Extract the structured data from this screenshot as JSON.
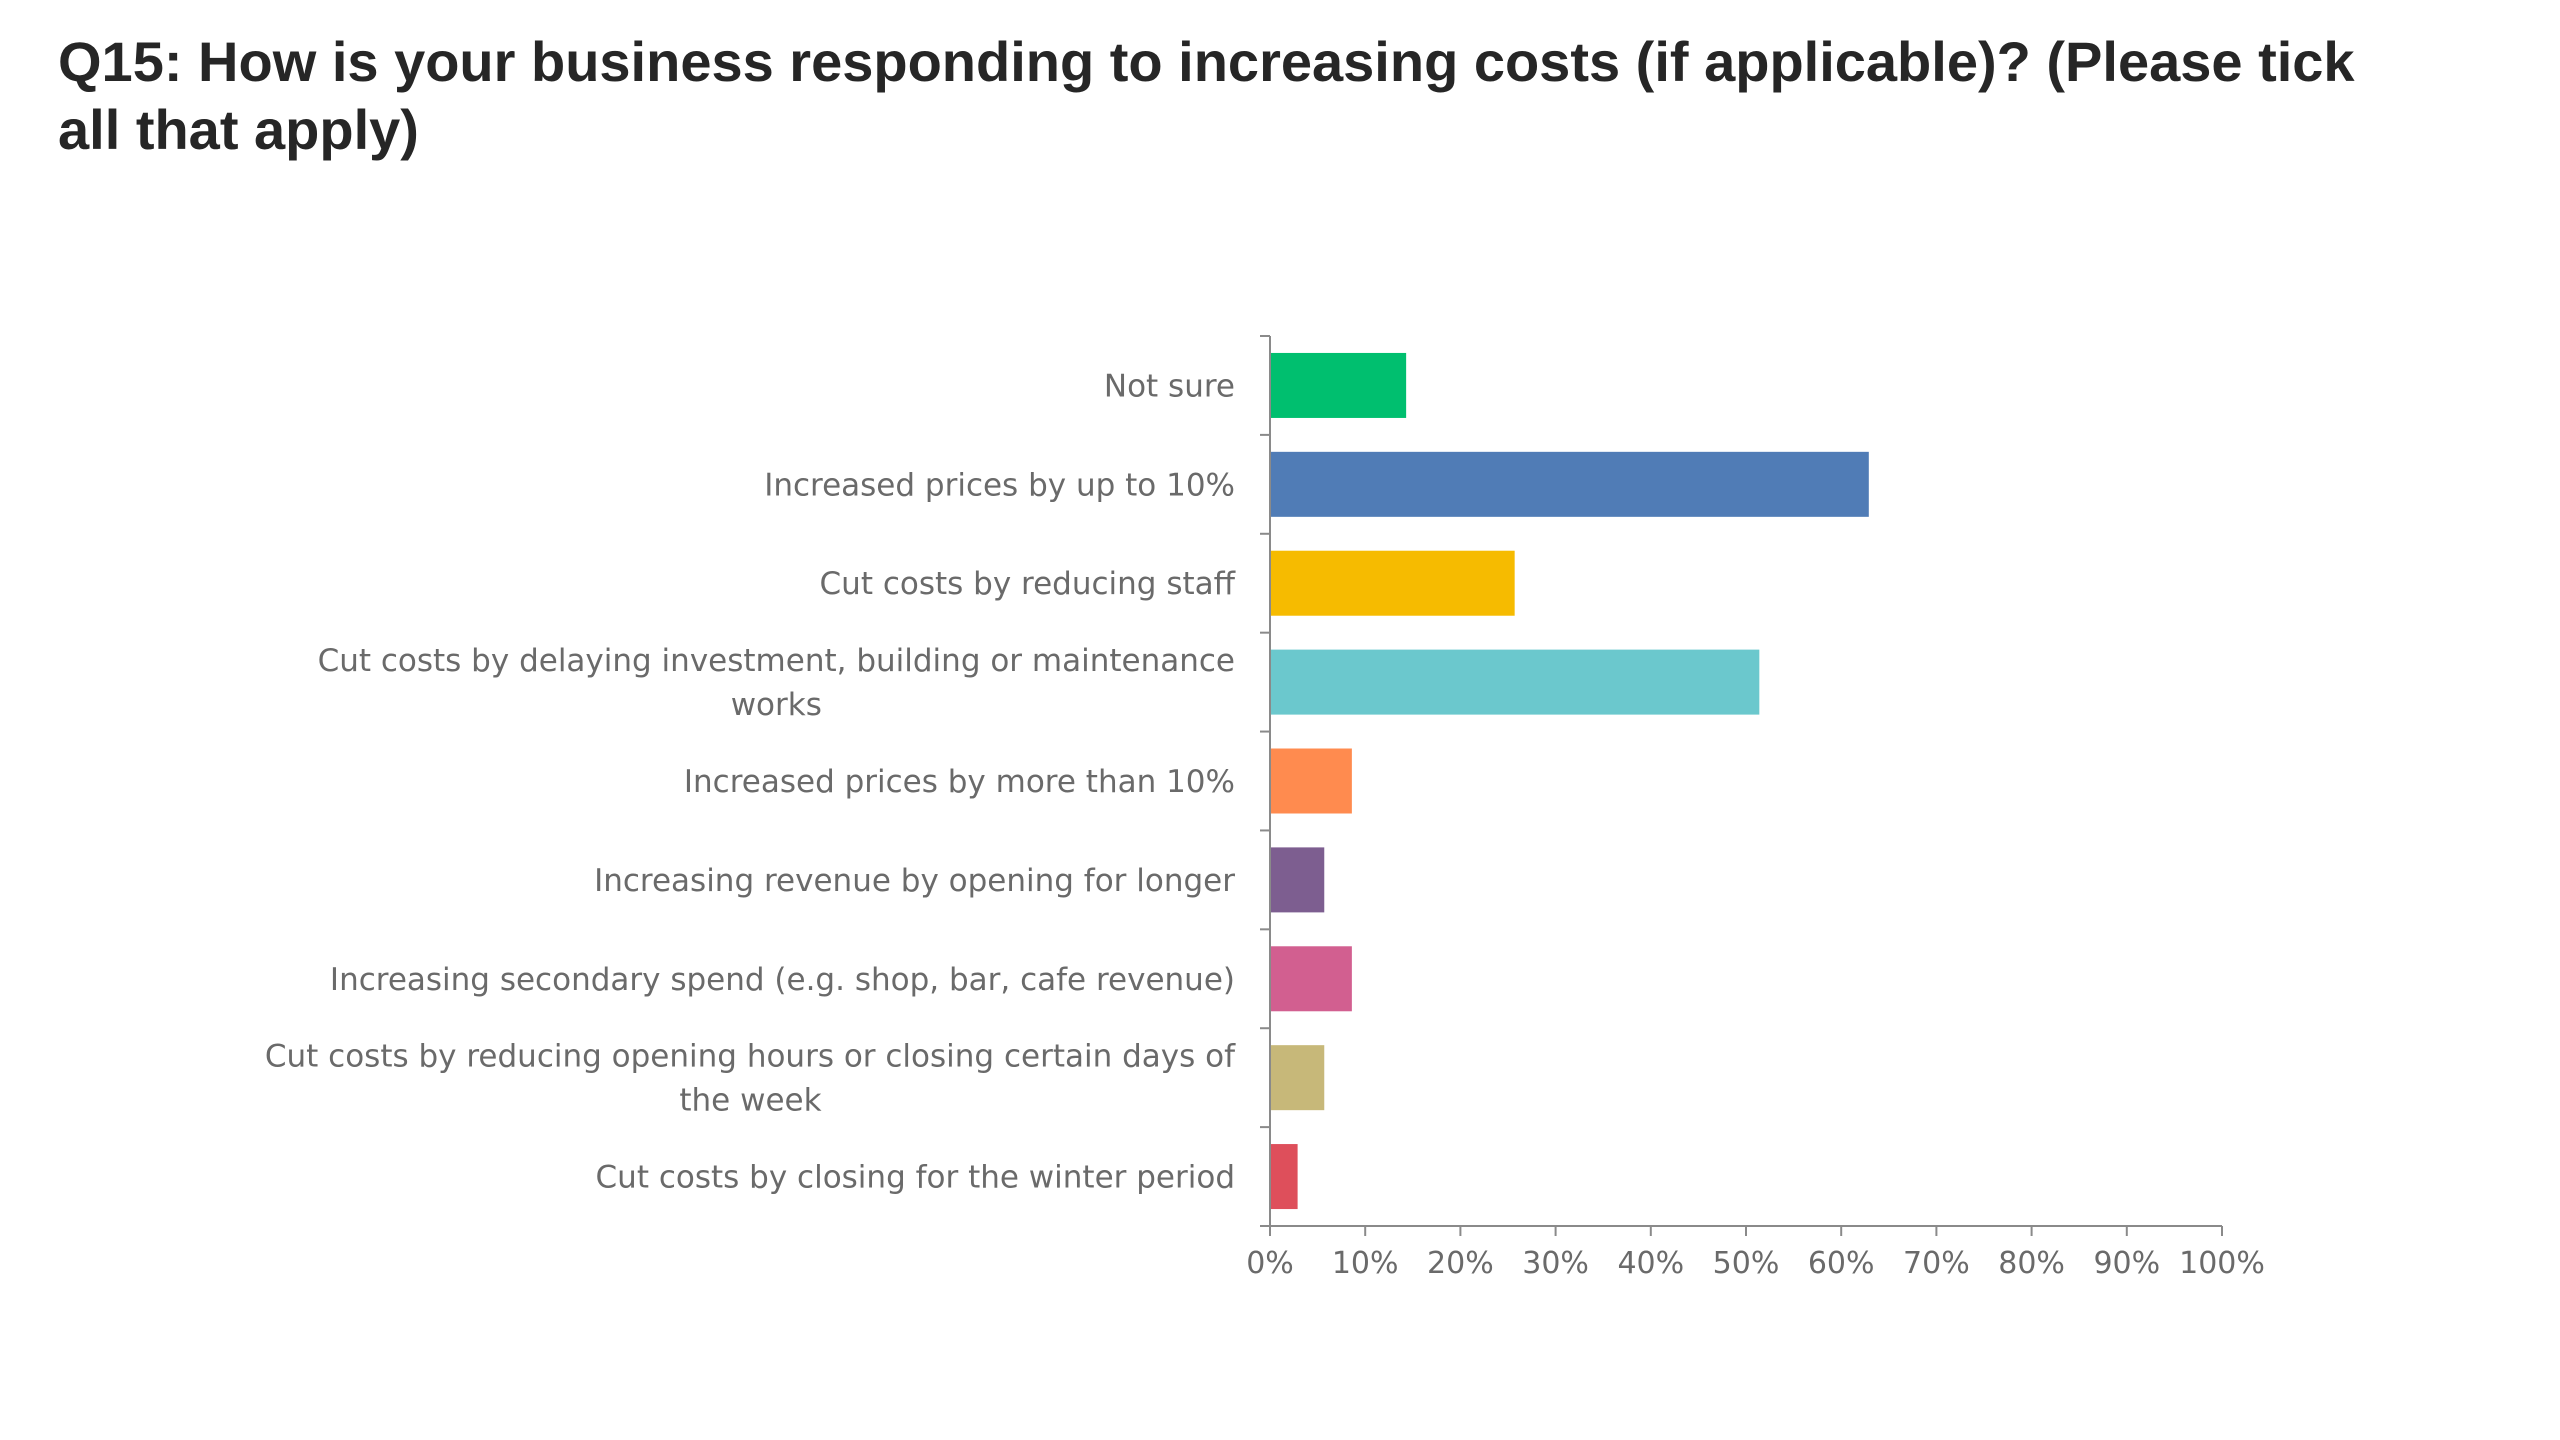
{
  "slide": {
    "title": "Q15: How is your business responding to increasing costs (if applicable)? (Please tick all that apply)"
  },
  "chart_data": {
    "type": "bar",
    "orientation": "horizontal",
    "title": "",
    "xlabel": "",
    "ylabel": "",
    "xlim": [
      0,
      100
    ],
    "x_tick_labels": [
      "0%",
      "10%",
      "20%",
      "30%",
      "40%",
      "50%",
      "60%",
      "70%",
      "80%",
      "90%",
      "100%"
    ],
    "grid": false,
    "legend": "none",
    "categories": [
      "Not sure",
      "Increased prices by up to 10%",
      "Cut costs by reducing staff",
      "Cut costs by delaying investment, building or maintenance works",
      "Increased prices by more than 10%",
      "Increasing revenue by opening for longer",
      "Increasing secondary spend (e.g. shop, bar, cafe revenue)",
      "Cut costs by reducing opening hours or closing certain days of the week",
      "Cut costs by closing for the winter period"
    ],
    "category_label_lines": [
      [
        "Not sure"
      ],
      [
        "Increased prices by up to 10%"
      ],
      [
        "Cut costs by reducing staff"
      ],
      [
        "Cut costs by delaying investment, building or maintenance",
        "works"
      ],
      [
        "Increased prices by more than 10%"
      ],
      [
        "Increasing revenue by opening for longer"
      ],
      [
        "Increasing secondary spend (e.g. shop, bar, cafe revenue)"
      ],
      [
        "Cut costs by reducing opening hours or closing certain days of",
        "the week"
      ],
      [
        "Cut costs by closing for the winter period"
      ]
    ],
    "values": [
      14.3,
      62.9,
      25.7,
      51.4,
      8.6,
      5.7,
      8.6,
      5.7,
      2.9
    ],
    "colors": [
      "#00BF6F",
      "#507CB6",
      "#F6BB00",
      "#6BC8CD",
      "#FF8B4F",
      "#7D5E90",
      "#D25F90",
      "#C7B879",
      "#DE4F5B"
    ],
    "axis_color": "#8a8a8a"
  }
}
